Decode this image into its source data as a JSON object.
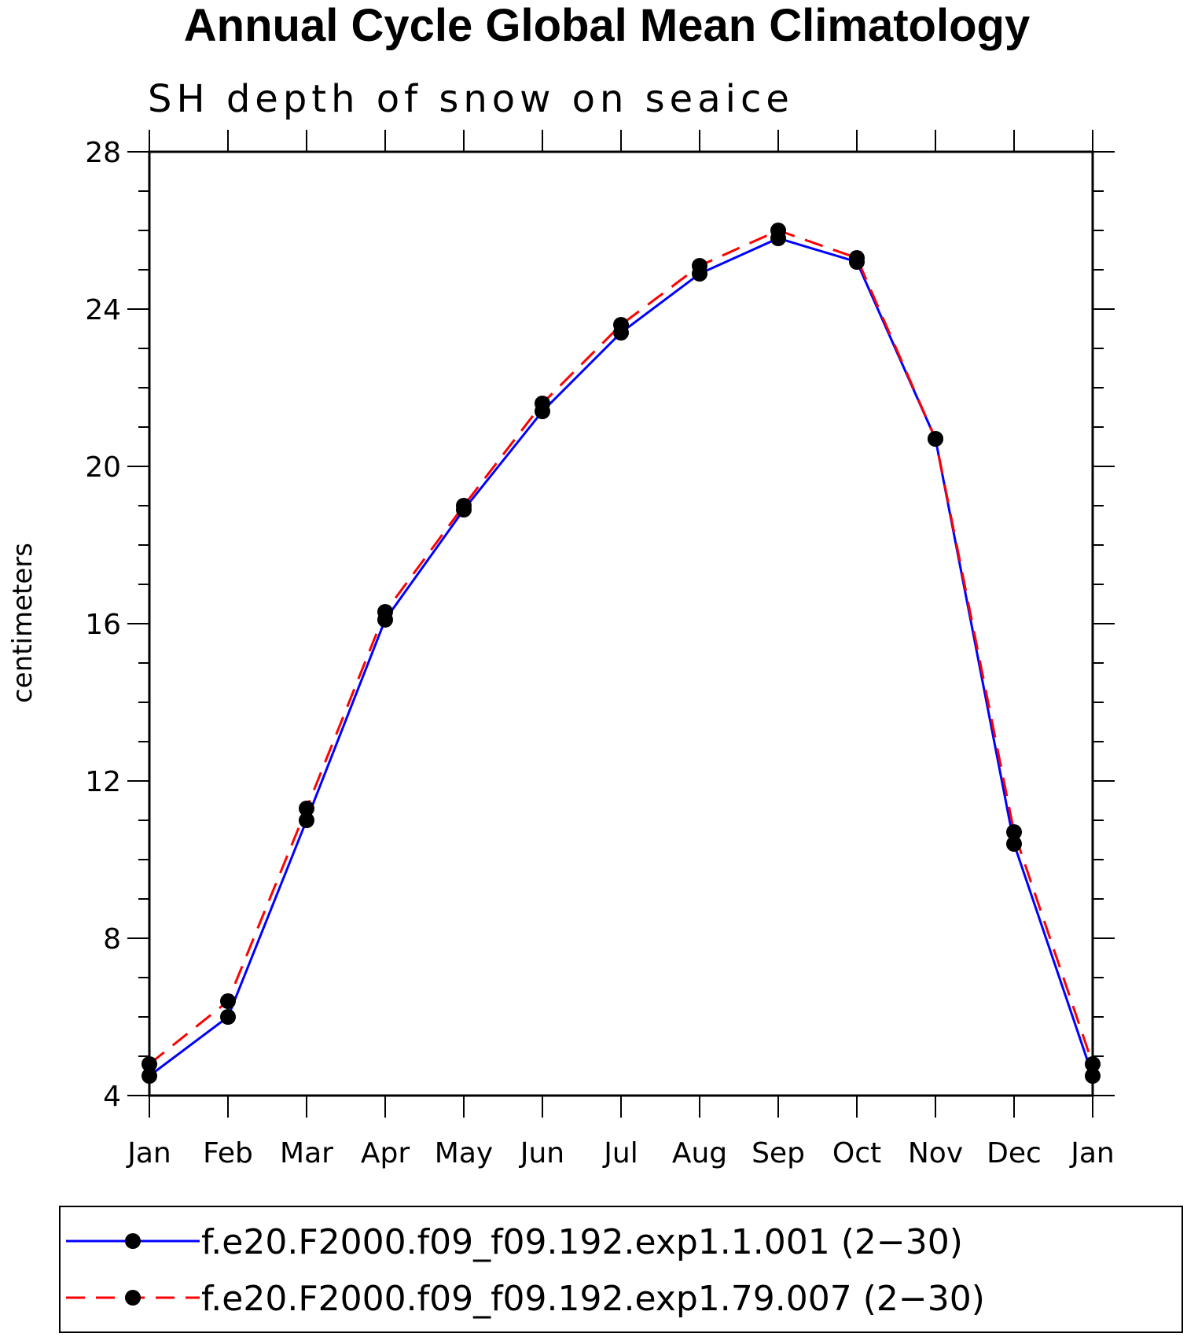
{
  "chart_data": {
    "type": "line",
    "title": "Annual Cycle Global Mean Climatology",
    "subtitle": "SH depth of snow on seaice",
    "ylabel": "centimeters",
    "xlabel": "",
    "categories": [
      "Jan",
      "Feb",
      "Mar",
      "Apr",
      "May",
      "Jun",
      "Jul",
      "Aug",
      "Sep",
      "Oct",
      "Nov",
      "Dec",
      "Jan"
    ],
    "ylim": [
      4,
      28
    ],
    "yticks": [
      4,
      8,
      12,
      16,
      20,
      24,
      28
    ],
    "series": [
      {
        "name": "f.e20.F2000.f09_f09.192.exp1.1.001 (2−30)",
        "color": "#0000ff",
        "style": "solid",
        "values": [
          4.5,
          6.0,
          11.0,
          16.1,
          18.9,
          21.4,
          23.4,
          24.9,
          25.8,
          25.2,
          20.7,
          10.4,
          4.5
        ]
      },
      {
        "name": "f.e20.F2000.f09_f09.192.exp1.79.007 (2−30)",
        "color": "#ff0000",
        "style": "dashed",
        "values": [
          4.8,
          6.4,
          11.3,
          16.3,
          19.0,
          21.6,
          23.6,
          25.1,
          26.0,
          25.3,
          20.7,
          10.7,
          4.8
        ]
      }
    ],
    "marker": "filled-circle",
    "grid": false,
    "legend": "bottom"
  }
}
